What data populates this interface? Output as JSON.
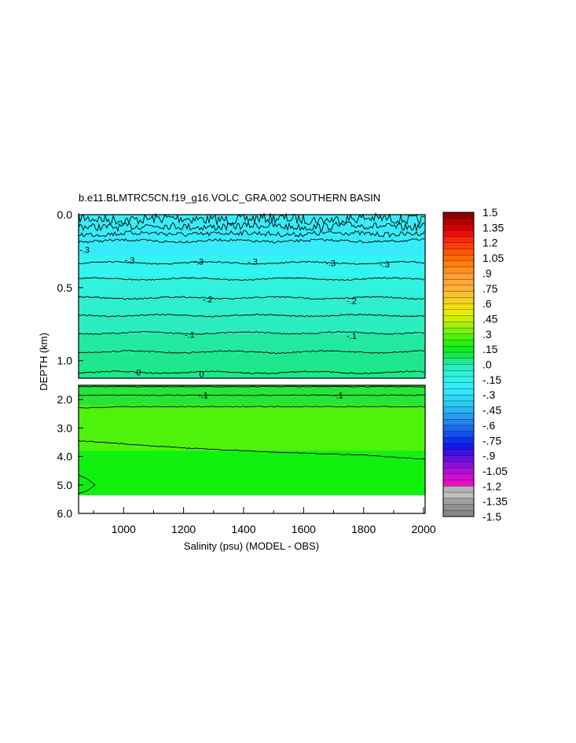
{
  "chart_data": {
    "type": "heatmap",
    "title": "b.e11.BLMTRC5CN.f19_g16.VOLC_GRA.002 SOUTHERN BASIN",
    "xlabel": "Salinity (psu) (MODEL - OBS)",
    "ylabel": "DEPTH (km)",
    "xlim": [
      850,
      2005
    ],
    "x_ticks": [
      "1000",
      "1200",
      "1400",
      "1600",
      "1800",
      "2000"
    ],
    "x_tick_values": [
      1000,
      1200,
      1400,
      1600,
      1800,
      2000
    ],
    "upper_panel": {
      "ylim": [
        0.0,
        1.12
      ],
      "y_ticks": [
        "0.0",
        "0.5",
        "1.0"
      ],
      "y_tick_values": [
        0.0,
        0.5,
        1.0
      ],
      "contour_depths": [
        0.03,
        0.08,
        0.13,
        0.18,
        0.33,
        0.44,
        0.57,
        0.69,
        0.81,
        0.94,
        1.08
      ],
      "color_bands": [
        {
          "top": 0.0,
          "bottom": 0.28,
          "color": "#36ecfa"
        },
        {
          "top": 0.28,
          "bottom": 0.42,
          "color": "#33f4f0"
        },
        {
          "top": 0.42,
          "bottom": 0.55,
          "color": "#2ff3e0"
        },
        {
          "top": 0.55,
          "bottom": 0.68,
          "color": "#2ef0cf"
        },
        {
          "top": 0.68,
          "bottom": 0.82,
          "color": "#2cedbd"
        },
        {
          "top": 0.82,
          "bottom": 0.95,
          "color": "#22e9a0"
        },
        {
          "top": 0.95,
          "bottom": 1.12,
          "color": "#1ee88c"
        }
      ],
      "contour_labels": [
        {
          "text": "-.3",
          "x": 870,
          "depth": 0.24
        },
        {
          "text": "-.3",
          "x": 1020,
          "depth": 0.31
        },
        {
          "text": "-.3",
          "x": 1250,
          "depth": 0.32
        },
        {
          "text": "-.3",
          "x": 1430,
          "depth": 0.32
        },
        {
          "text": "-.3",
          "x": 1690,
          "depth": 0.33
        },
        {
          "text": "-.3",
          "x": 1870,
          "depth": 0.34
        },
        {
          "text": "-.2",
          "x": 1280,
          "depth": 0.58
        },
        {
          "text": "-.2",
          "x": 1760,
          "depth": 0.59
        },
        {
          "text": "-.1",
          "x": 1220,
          "depth": 0.82
        },
        {
          "text": "-.1",
          "x": 1760,
          "depth": 0.83
        },
        {
          "text": "0",
          "x": 1050,
          "depth": 1.08
        },
        {
          "text": "0",
          "x": 1260,
          "depth": 1.09
        }
      ]
    },
    "lower_panel": {
      "ylim": [
        1.5,
        6.0
      ],
      "y_ticks": [
        "2.0",
        "3.0",
        "4.0",
        "5.0",
        "6.0"
      ],
      "y_tick_values": [
        2.0,
        3.0,
        4.0,
        5.0,
        6.0
      ],
      "bottom_depth": 5.35,
      "color_bands": [
        {
          "top": 1.5,
          "bottom": 2.2,
          "color": "#24e638"
        },
        {
          "top": 2.2,
          "bottom": 3.8,
          "color": "#4ff20a"
        },
        {
          "top": 3.8,
          "bottom": 5.35,
          "color": "#10f10e"
        }
      ],
      "contour_lines": [
        {
          "x": [
            850,
            2005
          ],
          "depth": [
            1.55,
            1.55
          ]
        },
        {
          "x": [
            850,
            2005
          ],
          "depth": [
            1.85,
            1.85
          ]
        },
        {
          "x": [
            850,
            1000,
            2005
          ],
          "depth": [
            2.3,
            2.25,
            2.25
          ]
        },
        {
          "x": [
            850,
            1200,
            1500,
            1800,
            2005
          ],
          "depth": [
            3.45,
            3.7,
            3.85,
            3.95,
            4.1
          ]
        }
      ],
      "contour_labels": [
        {
          "text": "-.1",
          "x": 1265,
          "depth": 1.85
        },
        {
          "text": "-.1",
          "x": 1715,
          "depth": 1.85
        }
      ]
    }
  },
  "colorbar": {
    "labels": [
      "1.5",
      "1.35",
      "1.2",
      "1.05",
      ".9",
      ".75",
      ".6",
      ".45",
      ".3",
      ".15",
      ".0",
      "-.15",
      "-.3",
      "-.45",
      "-.6",
      "-.75",
      "-.9",
      "-1.05",
      "-1.2",
      "-1.35",
      "-1.5"
    ],
    "colors": [
      "#8c0000",
      "#b00000",
      "#d40000",
      "#ec1010",
      "#f82a0a",
      "#ff3c08",
      "#ff5400",
      "#ff6a00",
      "#ff7e10",
      "#ff9020",
      "#ff9d30",
      "#ffa838",
      "#ffb030",
      "#f8c030",
      "#f2d020",
      "#eee00c",
      "#e6ea06",
      "#ccee06",
      "#a8f008",
      "#7ef20a",
      "#50f20a",
      "#28f014",
      "#10ee1e",
      "#16e848",
      "#1ee890",
      "#28eec0",
      "#2ef2d8",
      "#32f2ea",
      "#36eefa",
      "#34e6f8",
      "#2ed8f4",
      "#28c8f2",
      "#26b4f0",
      "#249cee",
      "#2284ee",
      "#1a6aec",
      "#1450ec",
      "#1030ec",
      "#1818e8",
      "#4010e4",
      "#6410e0",
      "#8c10dc",
      "#b010d8",
      "#d010d0",
      "#e410c8",
      "#b4b4b4",
      "#bebebe",
      "#a0a0a0",
      "#909090",
      "#888888"
    ]
  }
}
